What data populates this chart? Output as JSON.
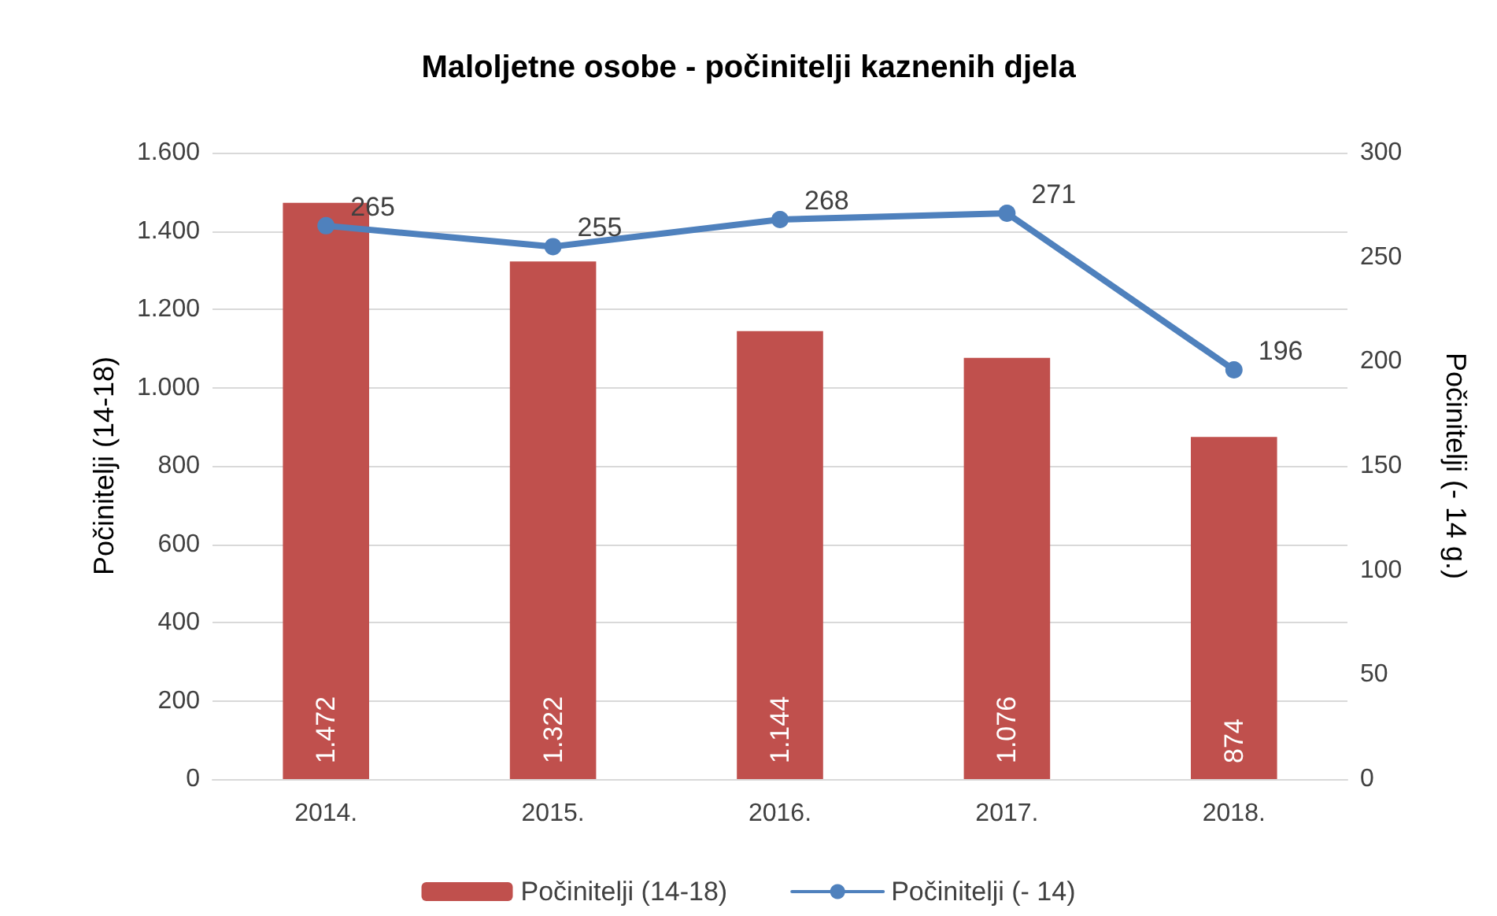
{
  "chart_data": {
    "type": "bar",
    "title": "Maloljetne osobe - počinitelji kaznenih djela",
    "ylabel": "Počinitelji (14-18)",
    "y2label": "Počinitelji (- 14 g.)",
    "categories": [
      "2014.",
      "2015.",
      "2016.",
      "2017.",
      "2018."
    ],
    "series": [
      {
        "name": "Počinitelji (14-18)",
        "color": "#c0504d",
        "values": [
          1472,
          1322,
          1144,
          1076,
          874
        ],
        "value_labels": [
          "1.472",
          "1.322",
          "1.144",
          "1.076",
          "874"
        ]
      },
      {
        "name": "Počinitelji (- 14)",
        "type": "line",
        "axis": "y2",
        "color": "#4f81bd",
        "values": [
          265,
          255,
          268,
          271,
          196
        ],
        "value_labels": [
          "265",
          "255",
          "268",
          "271",
          "196"
        ]
      }
    ],
    "ylim": [
      0,
      1600
    ],
    "yticks": [
      0,
      200,
      400,
      600,
      800,
      {
        "value": 1000,
        "label": "1.000"
      },
      {
        "value": 1200,
        "label": "1.200"
      },
      {
        "value": 1400,
        "label": "1.400"
      },
      {
        "value": 1600,
        "label": "1.600"
      }
    ],
    "y2lim": [
      0,
      300
    ],
    "y2ticks": [
      0,
      50,
      100,
      150,
      200,
      250,
      300
    ],
    "grid": "y",
    "legend": "bottom",
    "marker": "circle",
    "line_style": "solid"
  }
}
